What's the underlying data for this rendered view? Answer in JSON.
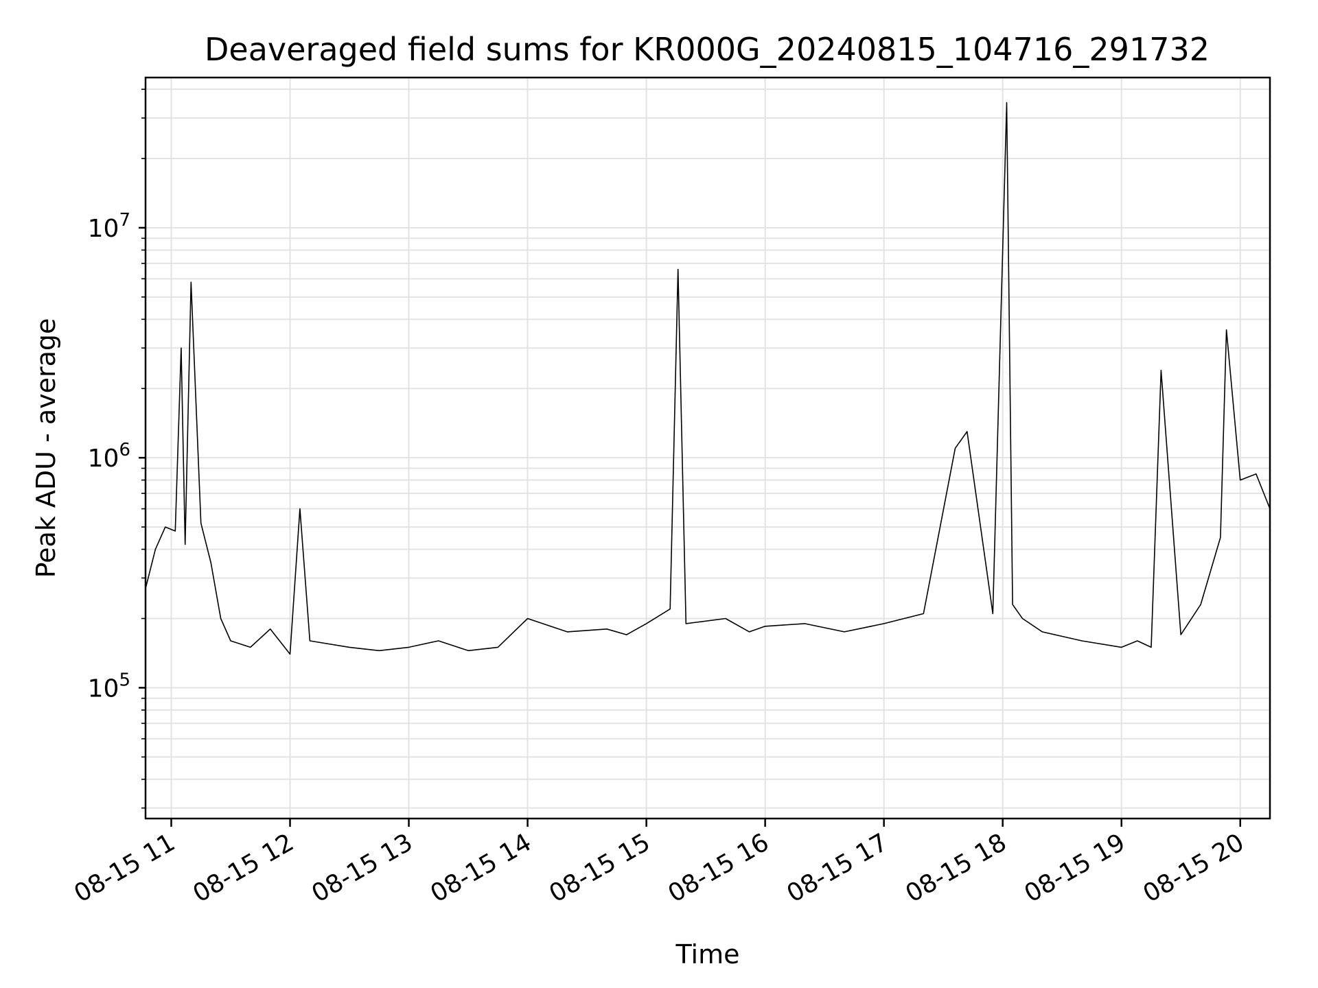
{
  "chart_data": {
    "type": "line",
    "title": "Deaveraged field sums for KR000G_20240815_104716_291732",
    "xlabel": "Time",
    "ylabel": "Peak ADU - average",
    "yscale": "log",
    "ylim": [
      27000,
      45000000
    ],
    "xlim": [
      "2024-08-15 10:47",
      "2024-08-15 20:15"
    ],
    "grid": true,
    "x_ticks": [
      "08-15 11",
      "08-15 12",
      "08-15 13",
      "08-15 14",
      "08-15 15",
      "08-15 16",
      "08-15 17",
      "08-15 18",
      "08-15 19",
      "08-15 20"
    ],
    "y_ticks": [
      {
        "base": "10",
        "exp": "5",
        "value": 100000
      },
      {
        "base": "10",
        "exp": "6",
        "value": 1000000
      },
      {
        "base": "10",
        "exp": "7",
        "value": 10000000
      }
    ],
    "series": [
      {
        "color": "#000000",
        "x": [
          "2024-08-15 10:47",
          "2024-08-15 10:52",
          "2024-08-15 10:57",
          "2024-08-15 11:02",
          "2024-08-15 11:05",
          "2024-08-15 11:07",
          "2024-08-15 11:10",
          "2024-08-15 11:15",
          "2024-08-15 11:20",
          "2024-08-15 11:25",
          "2024-08-15 11:30",
          "2024-08-15 11:40",
          "2024-08-15 11:50",
          "2024-08-15 12:00",
          "2024-08-15 12:05",
          "2024-08-15 12:10",
          "2024-08-15 12:30",
          "2024-08-15 12:45",
          "2024-08-15 13:00",
          "2024-08-15 13:15",
          "2024-08-15 13:30",
          "2024-08-15 13:45",
          "2024-08-15 14:00",
          "2024-08-15 14:20",
          "2024-08-15 14:40",
          "2024-08-15 14:50",
          "2024-08-15 15:00",
          "2024-08-15 15:12",
          "2024-08-15 15:16",
          "2024-08-15 15:20",
          "2024-08-15 15:40",
          "2024-08-15 15:52",
          "2024-08-15 16:00",
          "2024-08-15 16:20",
          "2024-08-15 16:40",
          "2024-08-15 17:00",
          "2024-08-15 17:20",
          "2024-08-15 17:36",
          "2024-08-15 17:42",
          "2024-08-15 17:55",
          "2024-08-15 18:02",
          "2024-08-15 18:05",
          "2024-08-15 18:10",
          "2024-08-15 18:20",
          "2024-08-15 18:40",
          "2024-08-15 19:00",
          "2024-08-15 19:08",
          "2024-08-15 19:15",
          "2024-08-15 19:20",
          "2024-08-15 19:30",
          "2024-08-15 19:40",
          "2024-08-15 19:50",
          "2024-08-15 19:53",
          "2024-08-15 20:00",
          "2024-08-15 20:08",
          "2024-08-15 20:15"
        ],
        "y": [
          270000,
          400000,
          500000,
          480000,
          3000000,
          420000,
          5800000,
          520000,
          350000,
          200000,
          160000,
          150000,
          180000,
          140000,
          600000,
          160000,
          150000,
          145000,
          150000,
          160000,
          145000,
          150000,
          200000,
          175000,
          180000,
          170000,
          190000,
          220000,
          6600000,
          190000,
          200000,
          175000,
          185000,
          190000,
          175000,
          190000,
          210000,
          1100000,
          1300000,
          210000,
          35000000,
          230000,
          200000,
          175000,
          160000,
          150000,
          160000,
          150000,
          2400000,
          170000,
          230000,
          450000,
          3600000,
          800000,
          850000,
          600000
        ]
      }
    ]
  }
}
